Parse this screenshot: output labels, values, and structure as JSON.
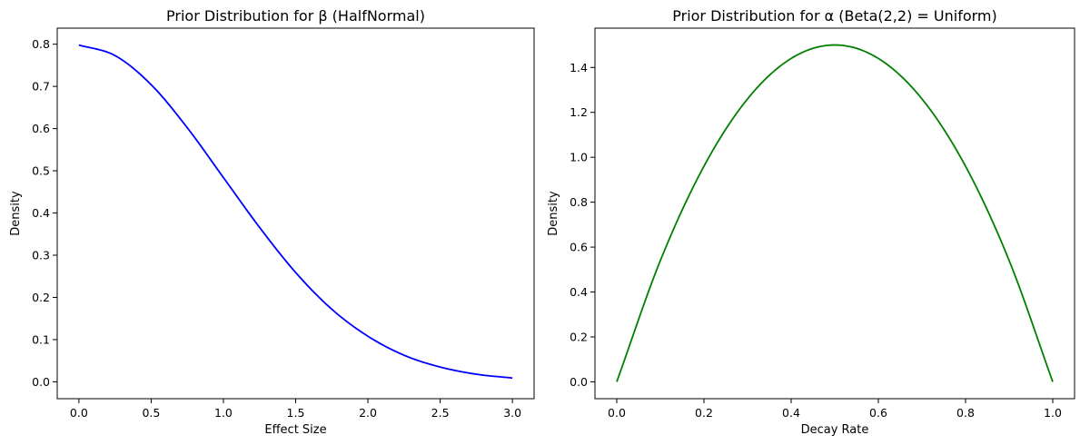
{
  "chart_data": [
    {
      "type": "line",
      "title": "Prior Distribution for β (HalfNormal)",
      "xlabel": "Effect Size",
      "ylabel": "Density",
      "xlim": [
        -0.15,
        3.15
      ],
      "ylim": [
        -0.04,
        0.838
      ],
      "xticks": [
        "0.0",
        "0.5",
        "1.0",
        "1.5",
        "2.0",
        "2.5",
        "3.0"
      ],
      "yticks": [
        "0.0",
        "0.1",
        "0.2",
        "0.3",
        "0.4",
        "0.5",
        "0.6",
        "0.7",
        "0.8"
      ],
      "grid": false,
      "color": "#0000ff",
      "series": [
        {
          "x": [
            0,
            0.25,
            0.5,
            0.75,
            1.0,
            1.25,
            1.5,
            1.75,
            2.0,
            2.25,
            2.5,
            2.75,
            3.0
          ],
          "values": [
            0.798,
            0.773,
            0.704,
            0.602,
            0.484,
            0.366,
            0.259,
            0.172,
            0.108,
            0.063,
            0.035,
            0.018,
            0.009
          ]
        }
      ]
    },
    {
      "type": "line",
      "title": "Prior Distribution for α (Beta(2,2) = Uniform)",
      "xlabel": "Decay Rate",
      "ylabel": "Density",
      "xlim": [
        -0.05,
        1.05
      ],
      "ylim": [
        -0.075,
        1.575
      ],
      "xticks": [
        "0.0",
        "0.2",
        "0.4",
        "0.6",
        "0.8",
        "1.0"
      ],
      "yticks": [
        "0.0",
        "0.2",
        "0.4",
        "0.6",
        "0.8",
        "1.0",
        "1.2",
        "1.4"
      ],
      "grid": false,
      "color": "#008000",
      "series": [
        {
          "x": [
            0,
            0.1,
            0.2,
            0.3,
            0.4,
            0.5,
            0.6,
            0.7,
            0.8,
            0.9,
            1.0
          ],
          "values": [
            0,
            0.54,
            0.96,
            1.26,
            1.44,
            1.5,
            1.44,
            1.26,
            0.96,
            0.54,
            0
          ]
        }
      ]
    }
  ]
}
